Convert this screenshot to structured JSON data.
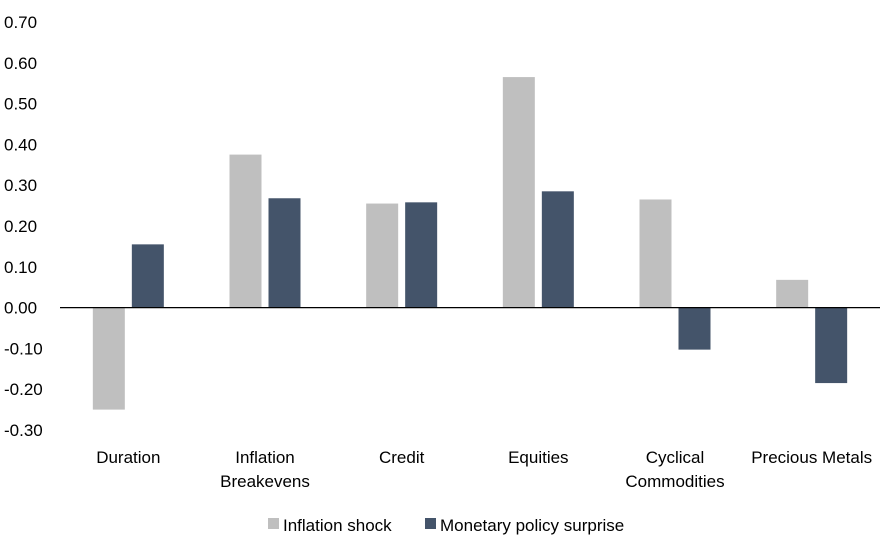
{
  "chart_data": {
    "type": "bar",
    "categories": [
      [
        "Duration"
      ],
      [
        "Inflation",
        "Breakevens"
      ],
      [
        "Credit"
      ],
      [
        "Equities"
      ],
      [
        "Cyclical",
        "Commodities"
      ],
      [
        "Precious Metals"
      ]
    ],
    "series": [
      {
        "name": "Inflation shock",
        "color": "#bfbfbf",
        "values": [
          -0.25,
          0.375,
          0.255,
          0.565,
          0.265,
          0.068
        ]
      },
      {
        "name": "Monetary policy surprise",
        "color": "#44546a",
        "values": [
          0.155,
          0.268,
          0.258,
          0.285,
          -0.103,
          -0.185
        ]
      }
    ],
    "ylim": [
      -0.3,
      0.7
    ],
    "yticks": [
      "-0.30",
      "-0.20",
      "-0.10",
      "0.00",
      "0.10",
      "0.20",
      "0.30",
      "0.40",
      "0.50",
      "0.60",
      "0.70"
    ],
    "ytick_values": [
      -0.3,
      -0.2,
      -0.1,
      0.0,
      0.1,
      0.2,
      0.3,
      0.4,
      0.5,
      0.6,
      0.7
    ],
    "grid": false,
    "legend_position": "bottom"
  }
}
